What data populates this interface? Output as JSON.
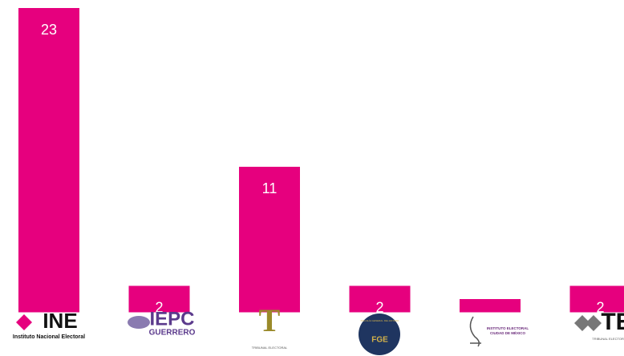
{
  "chart_data": {
    "type": "bar",
    "categories": [
      "INE",
      "IEPC",
      "T",
      "FGE",
      "INSTITUTO ELECTORAL",
      "TE"
    ],
    "category_sublabels": [
      "Instituto Nacional Electoral",
      "GUERRERO",
      "TRIBUNAL ELECTORAL",
      "FISCALÍA GENERAL DEL ESTADO",
      "CIUDAD DE MÉXICO",
      "TRIBUNAL ELECTORAL"
    ],
    "values": [
      23,
      2,
      11,
      2,
      1,
      2
    ],
    "color": "#e6007e"
  }
}
